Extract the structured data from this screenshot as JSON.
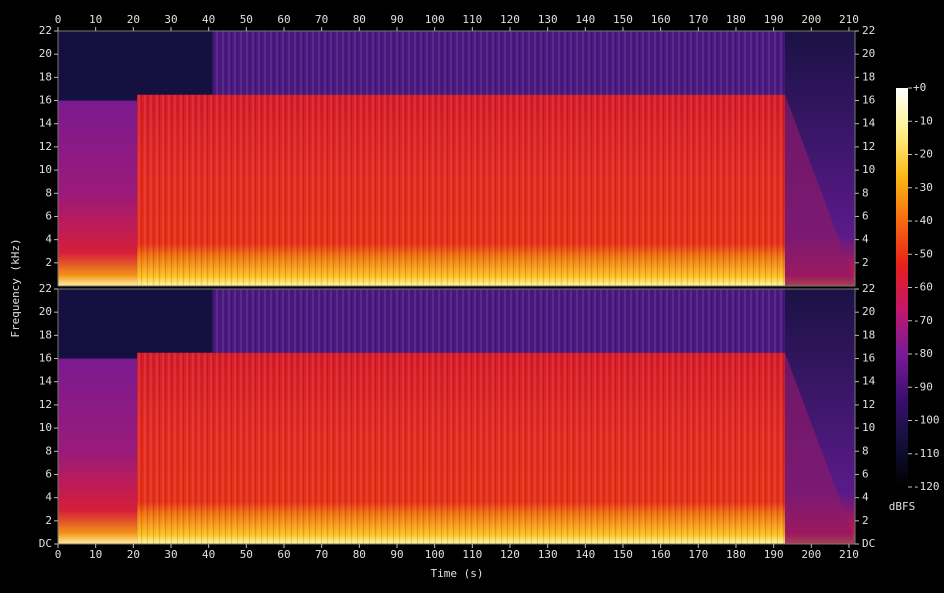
{
  "chart_data": {
    "type": "spectrogram",
    "xlabel": "Time (s)",
    "ylabel": "Frequency (kHz)",
    "xlim": [
      0,
      211.6
    ],
    "xticks": [
      0,
      10,
      20,
      30,
      40,
      50,
      60,
      70,
      80,
      90,
      100,
      110,
      120,
      130,
      140,
      150,
      160,
      170,
      180,
      190,
      200,
      210
    ],
    "panels": [
      {
        "ylim": [
          0,
          22
        ],
        "yticks": [
          2,
          4,
          6,
          8,
          10,
          12,
          14,
          16,
          18,
          20,
          22
        ]
      },
      {
        "ylim": [
          0,
          22
        ],
        "yticks": [
          {
            "value": 0,
            "label": "DC"
          },
          2,
          4,
          6,
          8,
          10,
          12,
          14,
          16,
          18,
          20,
          22
        ]
      }
    ],
    "colorbar": {
      "label": "dBFS",
      "lim": [
        -120,
        0
      ],
      "ticks": [
        {
          "value": 0,
          "label": "+0"
        },
        -10,
        -20,
        -30,
        -40,
        -50,
        -60,
        -70,
        -80,
        -90,
        -100,
        -110,
        -120
      ],
      "colors": [
        "#000000",
        "#12103a",
        "#3a0f6e",
        "#7a1a9a",
        "#c0186a",
        "#e8201a",
        "#f66a10",
        "#fbb817",
        "#fff08a",
        "#ffffff"
      ]
    }
  }
}
